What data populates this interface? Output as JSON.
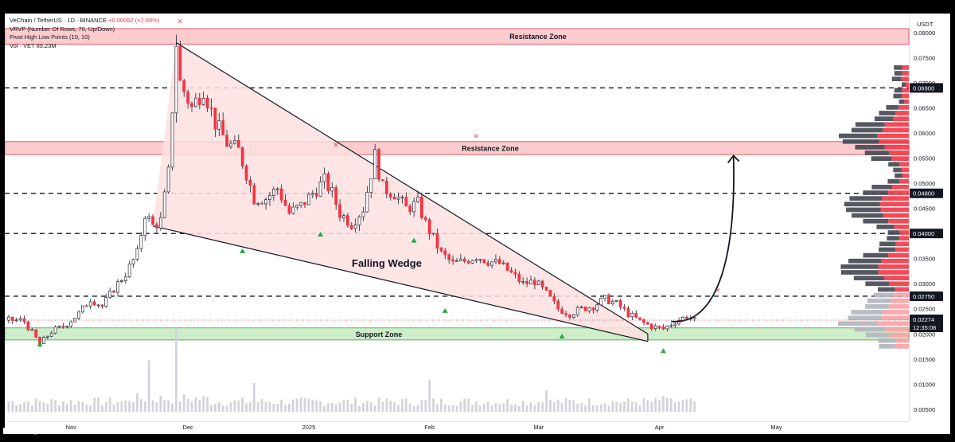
{
  "legend": {
    "symbol": "VeChain / TetherUS · 1D · BINANCE",
    "change": "+0.00062 (+2.80%)",
    "indicator_1": "VRVP (Number Of Rows, 70, Up/Down)",
    "indicator_2": "Pivot High Low Points (10, 10)",
    "indicator_3": "Vol · VET   89.23M"
  },
  "branding": {
    "name": "TradingView"
  },
  "colors": {
    "bull": "#089981",
    "bear": "#f23645",
    "zone_red": "#f7a1a5",
    "zone_green": "#b9e6b4",
    "wedge_fill": "#fde0e0",
    "vol": "#d1d4dc"
  },
  "chart_data": {
    "type": "candlestick",
    "symbol": "VeChain / TetherUS",
    "timeframe": "1D",
    "exchange": "BINANCE",
    "y_unit": "USDT",
    "ylim": [
      0.0045,
      0.0838
    ],
    "y_ticks": [
      "0.08000",
      "0.07500",
      "0.07000",
      "0.06500",
      "0.06000",
      "0.05500",
      "0.05000",
      "0.04500",
      "0.04000",
      "0.03500",
      "0.03000",
      "0.02500",
      "0.02000",
      "0.01500",
      "0.01000",
      "0.00500"
    ],
    "x_ticks": [
      "Nov",
      "Dec",
      "2025",
      "Feb",
      "Mar",
      "Apr",
      "May"
    ],
    "x_tick_days": [
      0,
      30,
      61,
      92,
      120,
      151,
      181
    ],
    "current_price": {
      "value": "0.02274",
      "countdown": "12:35:08"
    },
    "price_labels": [
      "0.06900",
      "0.04800",
      "0.04000",
      "0.02750"
    ],
    "price_label_values": [
      0.069,
      0.048,
      0.04,
      0.0275
    ],
    "horizontal_levels": [
      0.069,
      0.048,
      0.04,
      0.0275
    ],
    "zones": [
      {
        "label": "Resistance Zone",
        "low": 0.0777,
        "high": 0.0808,
        "type": "resistance"
      },
      {
        "label": "Resistance Zone",
        "low": 0.0557,
        "high": 0.0583,
        "type": "resistance"
      },
      {
        "label": "Support Zone",
        "low": 0.0188,
        "high": 0.0212,
        "type": "support"
      }
    ],
    "annotation": "Falling Wedge",
    "wedge": {
      "upper": [
        [
          27,
          0.078
        ],
        [
          148,
          0.02
        ]
      ],
      "lower": [
        [
          21,
          0.0415
        ],
        [
          148,
          0.0185
        ]
      ]
    },
    "projection_arrow": {
      "from": [
        154,
        0.0225
      ],
      "to": [
        170,
        0.0555
      ]
    },
    "pivot_highs": [
      [
        28,
        0.0818
      ],
      [
        68,
        0.0572
      ],
      [
        104,
        0.059
      ],
      [
        166,
        0.0283
      ]
    ],
    "pivot_lows": [
      [
        -8,
        0.0178
      ],
      [
        44,
        0.0364
      ],
      [
        64,
        0.0397
      ],
      [
        88,
        0.0385
      ],
      [
        96,
        0.0245
      ],
      [
        126,
        0.0194
      ],
      [
        152,
        0.0165
      ]
    ],
    "price_path": [
      [
        -12,
        0.0225
      ],
      [
        -8,
        0.018
      ],
      [
        -5,
        0.0205
      ],
      [
        -2,
        0.0215
      ],
      [
        2,
        0.024
      ],
      [
        5,
        0.027
      ],
      [
        8,
        0.0255
      ],
      [
        11,
        0.029
      ],
      [
        14,
        0.032
      ],
      [
        17,
        0.036
      ],
      [
        19,
        0.044
      ],
      [
        21,
        0.0415
      ],
      [
        23,
        0.0425
      ],
      [
        25,
        0.052
      ],
      [
        27,
        0.078
      ],
      [
        28,
        0.07
      ],
      [
        31,
        0.065
      ],
      [
        34,
        0.069
      ],
      [
        37,
        0.062
      ],
      [
        40,
        0.058
      ],
      [
        43,
        0.0565
      ],
      [
        45,
        0.052
      ],
      [
        47,
        0.047
      ],
      [
        50,
        0.047
      ],
      [
        53,
        0.049
      ],
      [
        56,
        0.044
      ],
      [
        59,
        0.0455
      ],
      [
        62,
        0.048
      ],
      [
        65,
        0.0505
      ],
      [
        67,
        0.048
      ],
      [
        69,
        0.044
      ],
      [
        72,
        0.042
      ],
      [
        75,
        0.045
      ],
      [
        78,
        0.0555
      ],
      [
        80,
        0.049
      ],
      [
        83,
        0.048
      ],
      [
        86,
        0.045
      ],
      [
        89,
        0.046
      ],
      [
        91,
        0.042
      ],
      [
        93,
        0.039
      ],
      [
        95,
        0.036
      ],
      [
        98,
        0.034
      ],
      [
        101,
        0.0345
      ],
      [
        104,
        0.0355
      ],
      [
        107,
        0.0345
      ],
      [
        110,
        0.034
      ],
      [
        113,
        0.032
      ],
      [
        116,
        0.03
      ],
      [
        119,
        0.0305
      ],
      [
        122,
        0.028
      ],
      [
        125,
        0.025
      ],
      [
        128,
        0.024
      ],
      [
        131,
        0.025
      ],
      [
        134,
        0.0255
      ],
      [
        137,
        0.027
      ],
      [
        140,
        0.026
      ],
      [
        143,
        0.024
      ],
      [
        146,
        0.0225
      ],
      [
        149,
        0.0215
      ],
      [
        152,
        0.021
      ],
      [
        155,
        0.0225
      ],
      [
        158,
        0.0235
      ],
      [
        160,
        0.0227
      ]
    ],
    "volume_spikes": [
      [
        27,
        0.9
      ],
      [
        20,
        0.55
      ],
      [
        47,
        0.4
      ],
      [
        92,
        0.45
      ],
      [
        122,
        0.3
      ],
      [
        152,
        0.22
      ]
    ]
  }
}
